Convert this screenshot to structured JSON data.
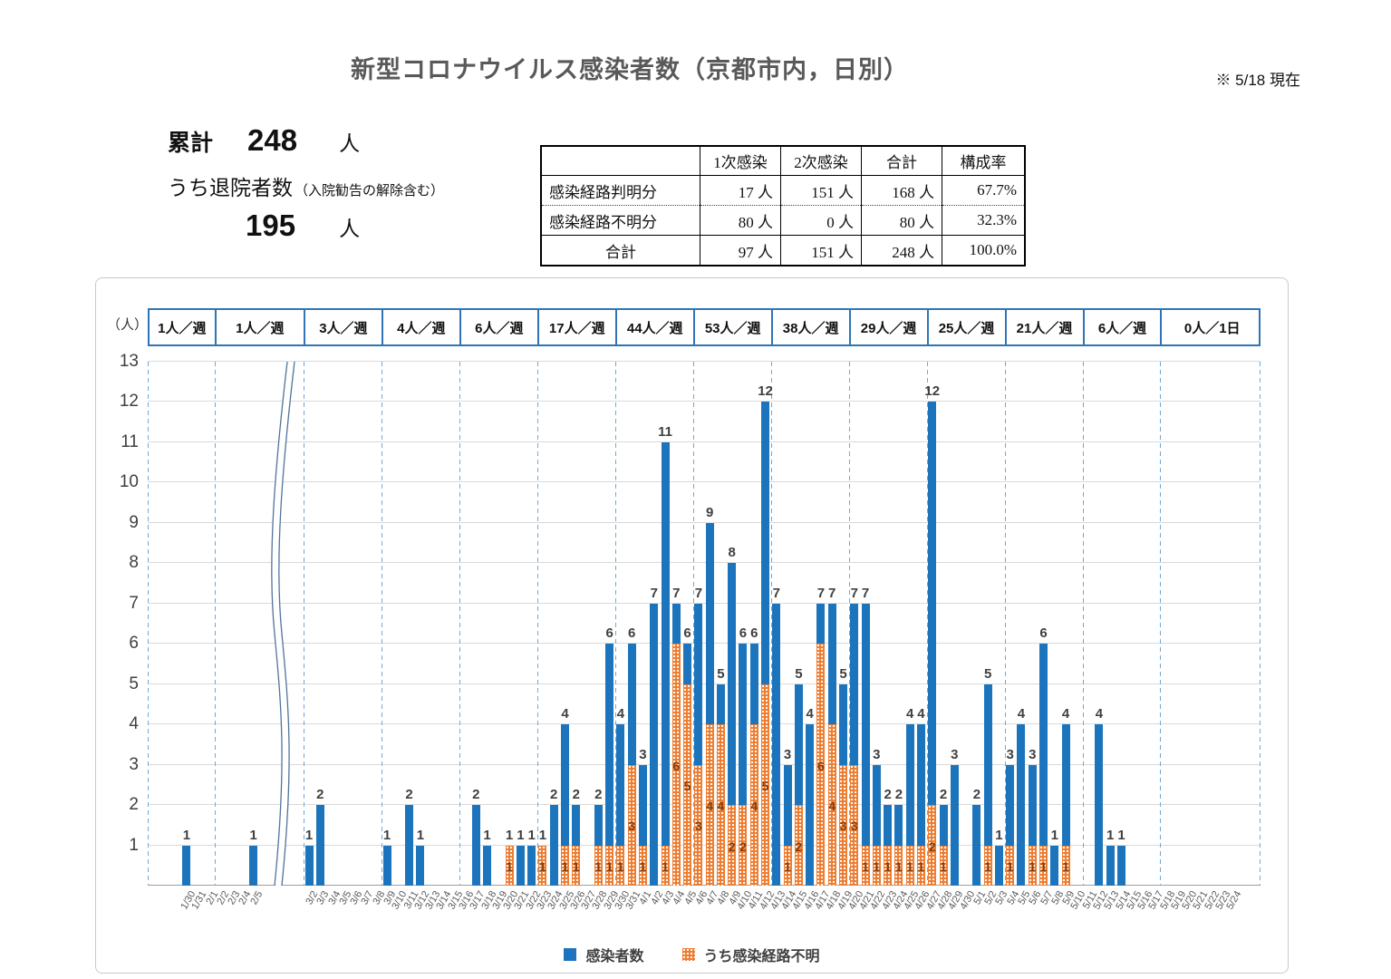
{
  "page": {
    "title": "新型コロナウイルス感染者数（京都市内，日別）",
    "as_of": "※ 5/18 現在"
  },
  "summary": {
    "cumulative_label": "累計",
    "cumulative_value": "248",
    "cumulative_unit": "人",
    "discharged_label": "うち退院者数",
    "discharged_note": "（入院勧告の解除含む）",
    "discharged_value": "195",
    "discharged_unit": "人"
  },
  "table": {
    "col_headers": [
      "",
      "1次感染",
      "2次感染",
      "合計",
      "構成率"
    ],
    "rows": [
      {
        "label": "感染経路判明分",
        "primary": "17 人",
        "secondary": "151 人",
        "total": "168 人",
        "ratio": "67.7%"
      },
      {
        "label": "感染経路不明分",
        "primary": "80 人",
        "secondary": "0 人",
        "total": "80 人",
        "ratio": "32.3%"
      },
      {
        "label": "合計",
        "primary": "97 人",
        "secondary": "151 人",
        "total": "248 人",
        "ratio": "100.0%"
      }
    ]
  },
  "week_band": [
    "1人／週",
    "1人／週",
    "3人／週",
    "4人／週",
    "6人／週",
    "17人／週",
    "44人／週",
    "53人／週",
    "38人／週",
    "29人／週",
    "25人／週",
    "21人／週",
    "6人／週",
    "0人／1日"
  ],
  "chart_data": {
    "type": "bar",
    "stacked": true,
    "unit_label": "（人）",
    "ylim": [
      0,
      13
    ],
    "y_ticks": [
      1,
      2,
      3,
      4,
      5,
      6,
      7,
      8,
      9,
      10,
      11,
      12,
      13
    ],
    "grid": true,
    "axis_break_after": "2/5",
    "note": "感染者数 values are daily totals; the blue segment equals total minus うち感染経路不明 (orange bottom segment).",
    "dates": [
      "1/30",
      "1/31",
      "2/1",
      "2/2",
      "2/3",
      "2/4",
      "2/5",
      "3/2",
      "3/3",
      "3/4",
      "3/5",
      "3/6",
      "3/7",
      "3/8",
      "3/9",
      "3/10",
      "3/11",
      "3/12",
      "3/13",
      "3/14",
      "3/15",
      "3/16",
      "3/17",
      "3/18",
      "3/19",
      "3/20",
      "3/21",
      "3/22",
      "3/23",
      "3/24",
      "3/25",
      "3/26",
      "3/27",
      "3/28",
      "3/29",
      "3/30",
      "3/31",
      "4/1",
      "4/2",
      "4/3",
      "4/4",
      "4/5",
      "4/6",
      "4/7",
      "4/8",
      "4/9",
      "4/10",
      "4/11",
      "4/12",
      "4/13",
      "4/14",
      "4/15",
      "4/16",
      "4/17",
      "4/18",
      "4/19",
      "4/20",
      "4/21",
      "4/22",
      "4/23",
      "4/24",
      "4/25",
      "4/26",
      "4/27",
      "4/28",
      "4/29",
      "4/30",
      "5/1",
      "5/2",
      "5/3",
      "5/4",
      "5/5",
      "5/6",
      "5/7",
      "5/8",
      "5/9",
      "5/10",
      "5/11",
      "5/12",
      "5/13",
      "5/14",
      "5/15",
      "5/16",
      "5/17",
      "5/18",
      "5/19",
      "5/20",
      "5/21",
      "5/22",
      "5/23",
      "5/24"
    ],
    "series": [
      {
        "name": "感染者数",
        "color": "#1c75bc",
        "values": [
          1,
          0,
          0,
          0,
          0,
          0,
          1,
          1,
          2,
          0,
          0,
          0,
          0,
          0,
          1,
          0,
          2,
          1,
          0,
          0,
          0,
          0,
          2,
          1,
          0,
          1,
          1,
          1,
          1,
          2,
          4,
          2,
          0,
          2,
          6,
          4,
          6,
          3,
          7,
          11,
          7,
          6,
          7,
          9,
          5,
          8,
          6,
          6,
          12,
          7,
          3,
          5,
          4,
          7,
          7,
          5,
          7,
          7,
          3,
          2,
          2,
          4,
          4,
          12,
          2,
          3,
          0,
          2,
          5,
          1,
          3,
          4,
          3,
          6,
          1,
          4,
          0,
          0,
          4,
          1,
          1,
          0,
          0,
          0,
          0,
          0,
          0,
          0,
          0,
          0,
          0
        ]
      },
      {
        "name": "うち感染経路不明",
        "color": "#ed7d31",
        "pattern": "white-dots",
        "values": [
          0,
          0,
          0,
          0,
          0,
          0,
          0,
          0,
          0,
          0,
          0,
          0,
          0,
          0,
          0,
          0,
          0,
          0,
          0,
          0,
          0,
          0,
          0,
          0,
          0,
          1,
          0,
          0,
          1,
          0,
          1,
          1,
          0,
          1,
          1,
          1,
          3,
          1,
          0,
          1,
          6,
          5,
          3,
          4,
          4,
          2,
          2,
          4,
          5,
          0,
          1,
          2,
          0,
          6,
          4,
          3,
          3,
          1,
          1,
          1,
          1,
          1,
          1,
          2,
          1,
          0,
          0,
          0,
          1,
          0,
          1,
          0,
          1,
          1,
          0,
          1,
          0,
          0,
          0,
          0,
          0,
          0,
          0,
          0,
          0,
          0,
          0,
          0,
          0,
          0,
          0
        ]
      }
    ],
    "legend": [
      {
        "name": "感染者数",
        "color": "#1c75bc"
      },
      {
        "name": "うち感染経路不明",
        "color": "#ed7d31"
      }
    ],
    "legend_position": "bottom"
  }
}
